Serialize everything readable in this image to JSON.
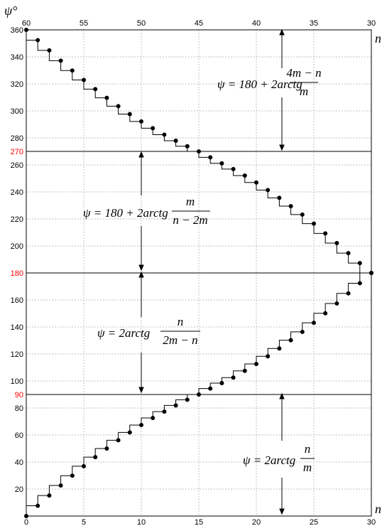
{
  "chart_data": {
    "type": "line",
    "x_bottom": {
      "label": "n",
      "range": [
        0,
        30
      ],
      "ticks": [
        "0",
        "5",
        "10",
        "15",
        "20",
        "25",
        "30"
      ]
    },
    "x_top": {
      "label": "n",
      "range": [
        60,
        30
      ],
      "ticks": [
        "60",
        "55",
        "50",
        "45",
        "40",
        "35",
        "30"
      ]
    },
    "y": {
      "label": "ψ°",
      "range": [
        0,
        360
      ],
      "ticks": [
        "20",
        "40",
        "60",
        "80",
        "100",
        "120",
        "140",
        "160",
        "200",
        "220",
        "240",
        "260",
        "280",
        "300",
        "320",
        "340",
        "360"
      ],
      "red_ticks": [
        "90",
        "180",
        "270"
      ]
    },
    "reference_lines": [
      90,
      180,
      270,
      360
    ],
    "grid": true,
    "series": [
      {
        "axis": "bottom",
        "x": [
          0,
          1,
          2,
          3,
          4,
          5,
          6,
          7,
          8,
          9,
          10,
          11,
          12,
          13,
          14,
          15,
          16,
          17,
          18,
          19,
          20,
          21,
          22,
          23,
          24,
          25,
          26,
          27,
          28,
          29,
          30
        ],
        "values": [
          0,
          7.6,
          15.2,
          22.6,
          29.9,
          36.9,
          43.6,
          50.0,
          56.1,
          61.9,
          67.4,
          72.6,
          77.3,
          81.9,
          86.1,
          90,
          94.4,
          98.4,
          102.5,
          107.5,
          112.6,
          118.3,
          124.1,
          130.2,
          136.4,
          143.1,
          150.1,
          157.4,
          164.9,
          172.4,
          180
        ]
      },
      {
        "axis": "top",
        "x": [
          60,
          59,
          58,
          57,
          56,
          55,
          54,
          53,
          52,
          51,
          50,
          49,
          48,
          47,
          46,
          45,
          44,
          43,
          42,
          41,
          40,
          39,
          38,
          37,
          36,
          35,
          34,
          33,
          32,
          31,
          30
        ],
        "values": [
          360,
          352.4,
          344.8,
          337.2,
          329.9,
          322.9,
          316.1,
          309.7,
          303.5,
          297.6,
          292.2,
          287.2,
          282.4,
          277.9,
          273.8,
          270,
          265.6,
          261.2,
          256.9,
          252.1,
          247.0,
          241.4,
          235.6,
          229.5,
          223.2,
          216.5,
          209.3,
          202.1,
          194.7,
          187.3,
          180
        ]
      }
    ],
    "annotations": {
      "top": {
        "lhs": "ψ = 180 + 2arctg",
        "num": "4m − n",
        "den": "m"
      },
      "upper_mid": {
        "lhs": "ψ = 180 + 2arctg",
        "num": "m",
        "den": "n − 2m"
      },
      "lower_mid": {
        "lhs": "ψ = 2arctg",
        "num": "n",
        "den": "2m − n"
      },
      "bottom": {
        "lhs": "ψ = 2arctg",
        "num": "n",
        "den": "m"
      }
    }
  }
}
